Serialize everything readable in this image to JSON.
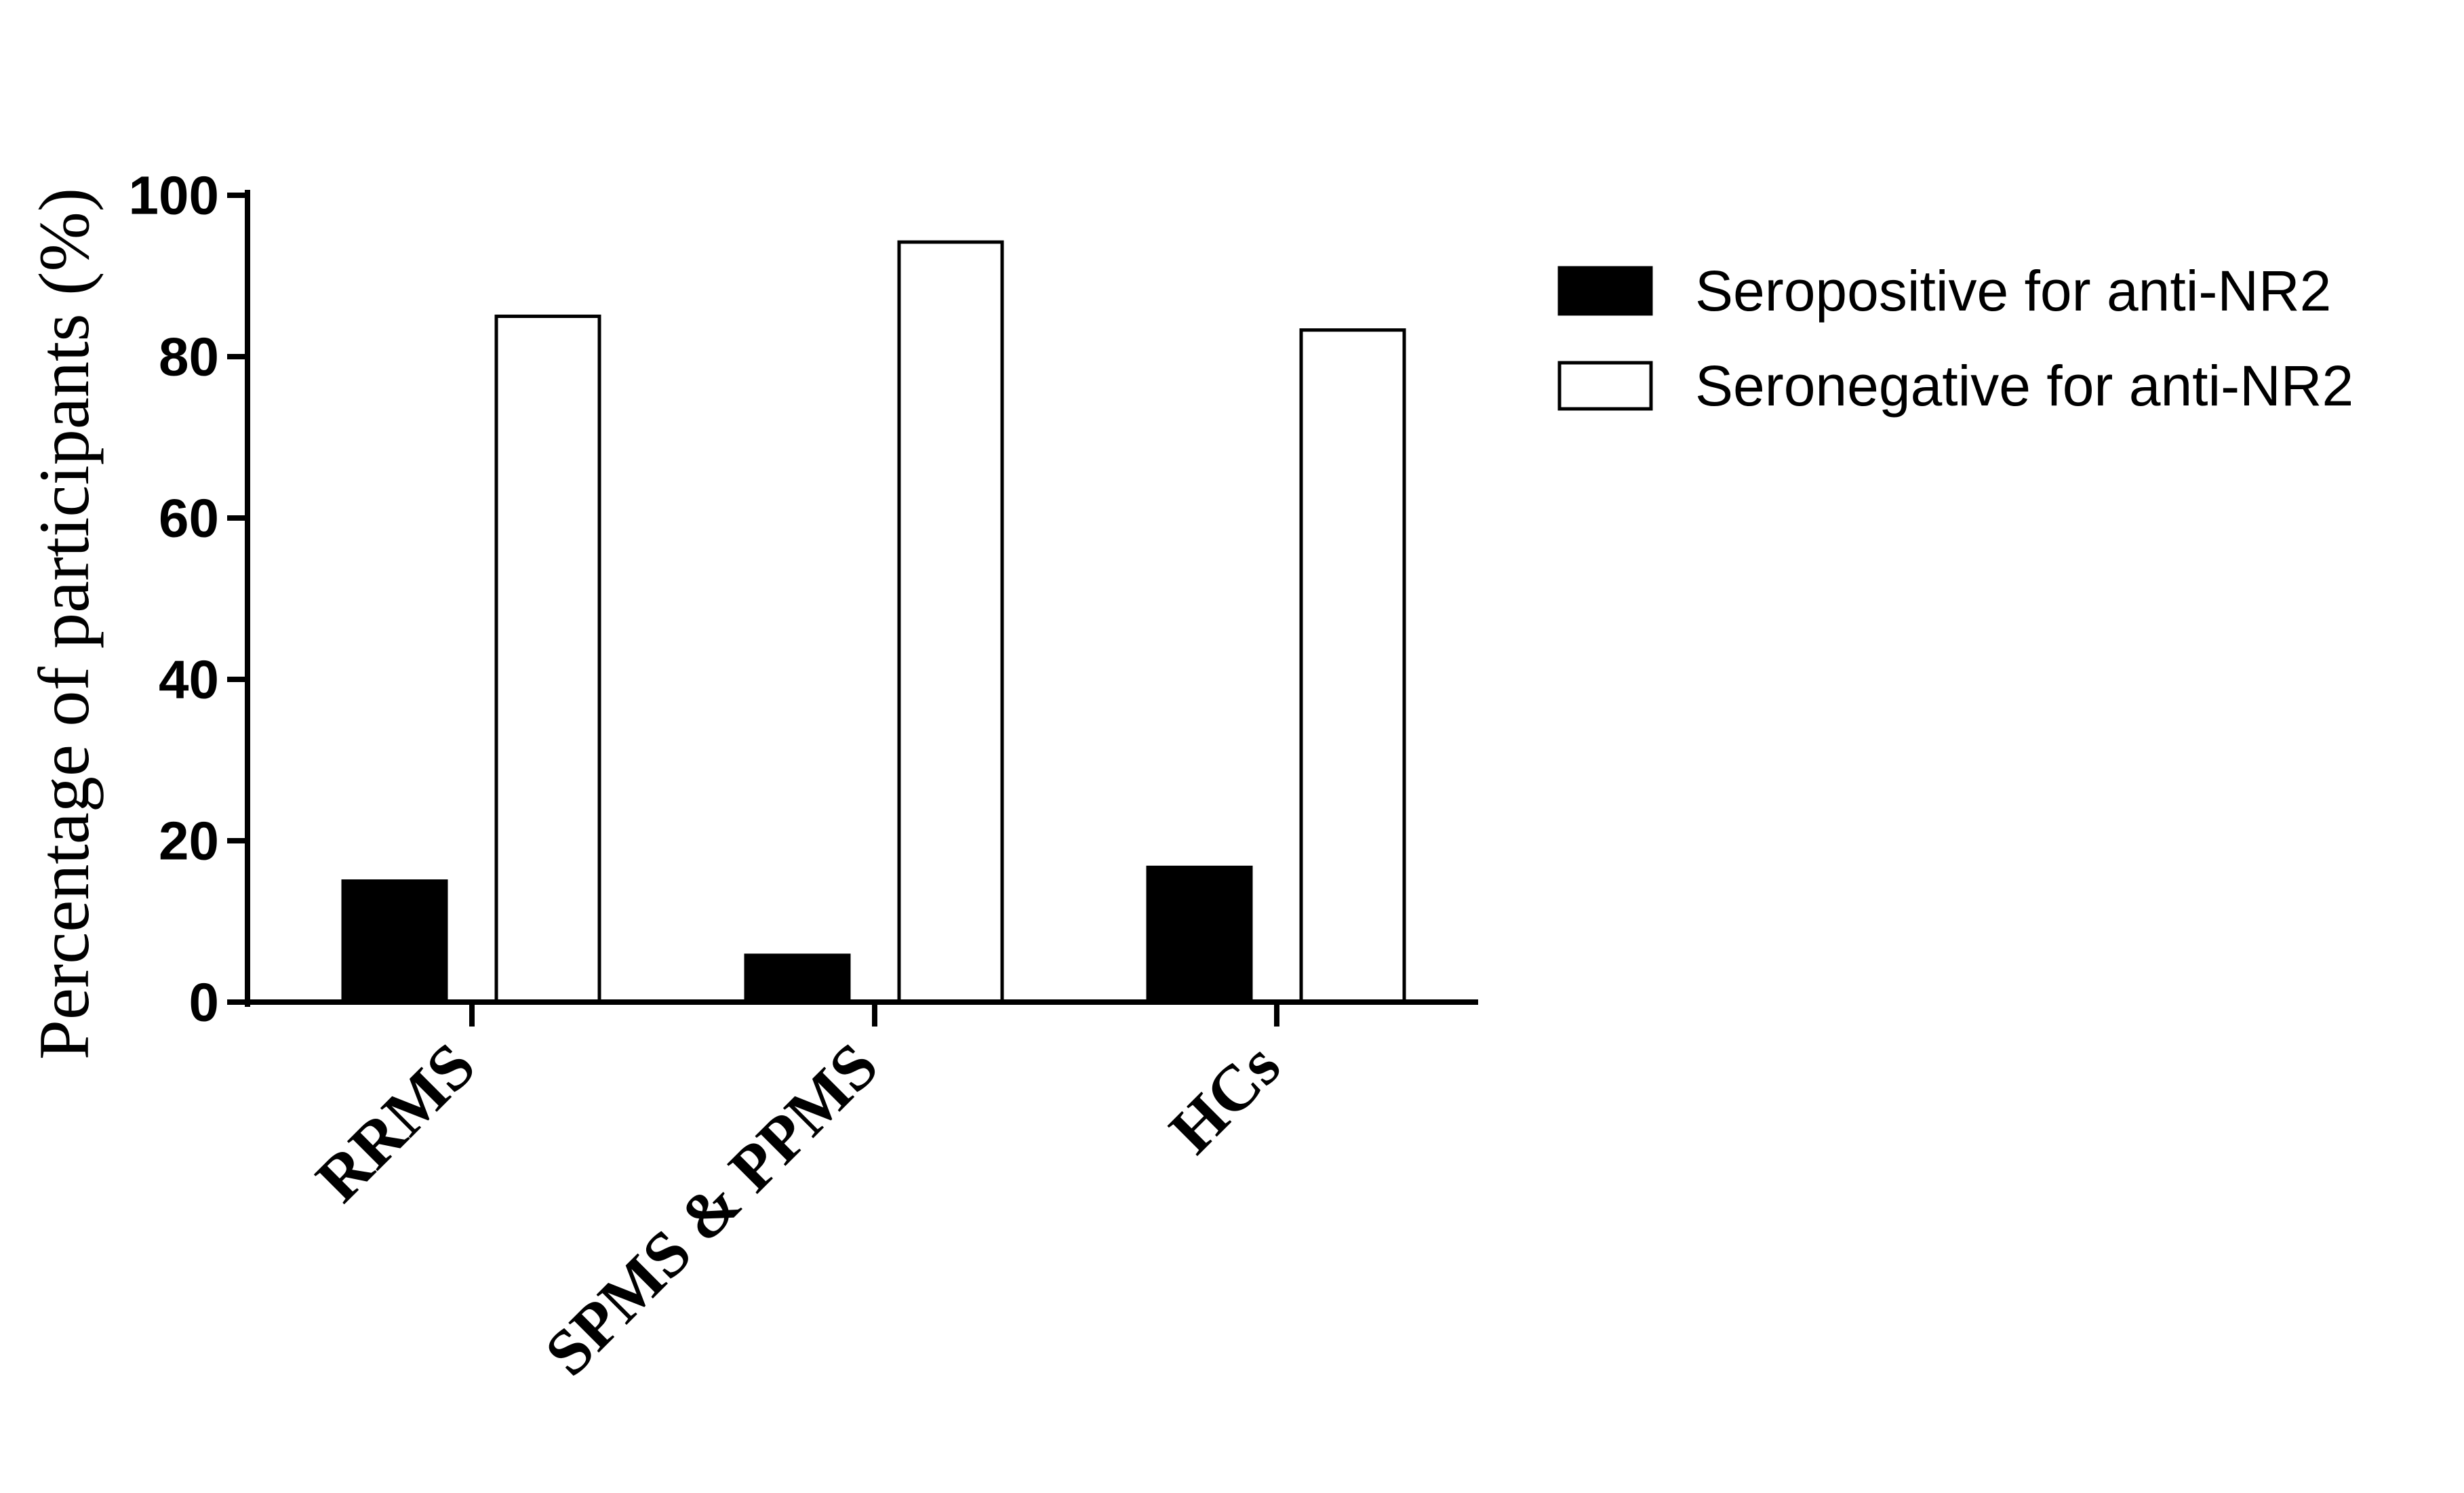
{
  "chart_data": {
    "type": "bar",
    "title": "",
    "xlabel": "",
    "ylabel": "Percentage of participants (%)",
    "ylim": [
      0,
      100
    ],
    "yticks": [
      0,
      20,
      40,
      60,
      80,
      100
    ],
    "ytick_labels": [
      "0",
      "20",
      "40",
      "60",
      "80",
      "100"
    ],
    "grid": false,
    "legend_position": "top-right",
    "categories": [
      "RRMS",
      "SPMS & PPMS",
      "HCs"
    ],
    "series": [
      {
        "name": "Seropositive for anti-NR2",
        "values": [
          15,
          5.8,
          16.7
        ],
        "fill": "#000000"
      },
      {
        "name": "Seronegative for anti-NR2",
        "values": [
          85,
          94.2,
          83.3
        ],
        "fill": "#ffffff"
      }
    ]
  }
}
